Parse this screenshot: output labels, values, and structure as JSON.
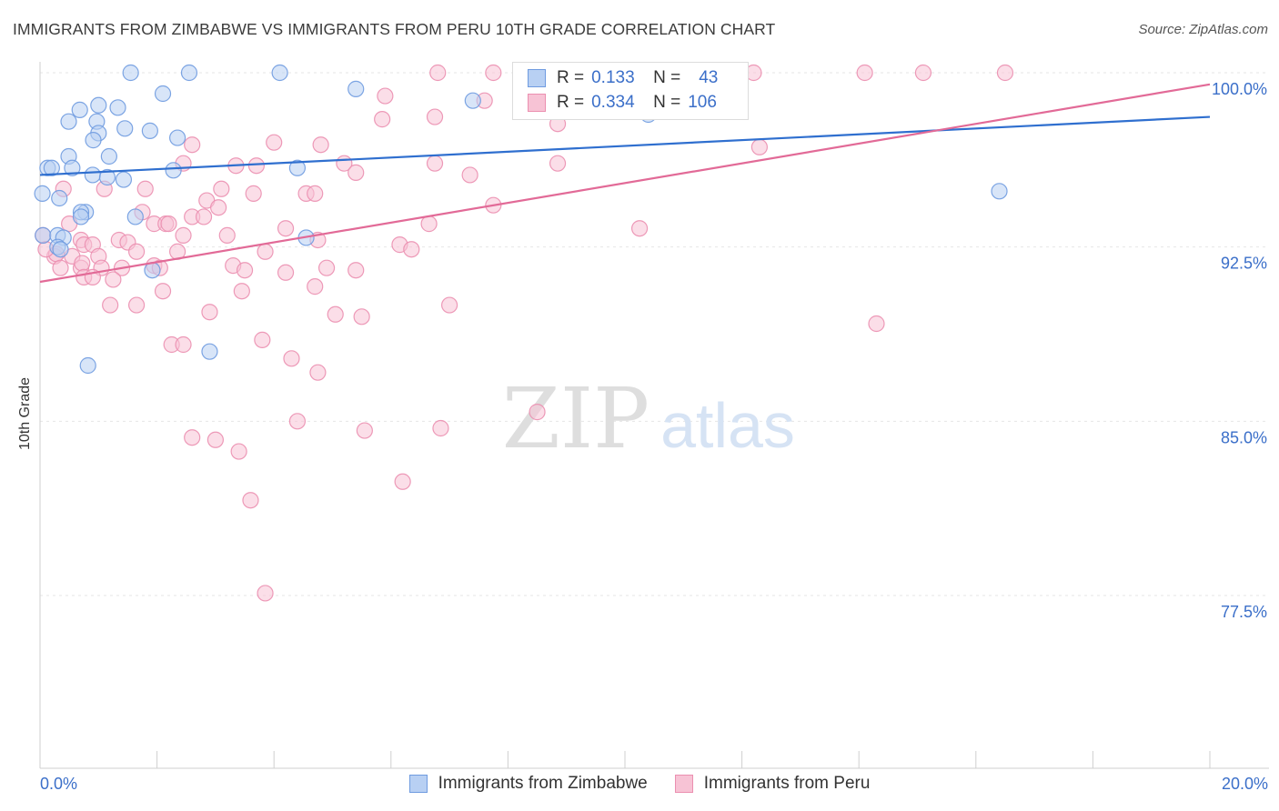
{
  "title": "IMMIGRANTS FROM ZIMBABWE VS IMMIGRANTS FROM PERU 10TH GRADE CORRELATION CHART",
  "source": "Source: ZipAtlas.com",
  "watermark": {
    "zip": "ZIP",
    "atlas": "atlas"
  },
  "colors": {
    "zimbabwe_fill": "#b8d0f3",
    "zimbabwe_stroke": "#6f9be0",
    "zimbabwe_line": "#2f6fcf",
    "peru_fill": "#f7c3d5",
    "peru_stroke": "#eb8fb0",
    "peru_line": "#e26a97",
    "tick_label": "#3b6fc9",
    "grid": "#e6e6e6"
  },
  "legend_stats": [
    {
      "r_label": "R =",
      "r_value": "0.133",
      "n_label": "N =",
      "n_value": "43",
      "series": "zimbabwe"
    },
    {
      "r_label": "R =",
      "r_value": "0.334",
      "n_label": "N =",
      "n_value": "106",
      "series": "peru"
    }
  ],
  "chart_data": {
    "type": "scatter",
    "title": "IMMIGRANTS FROM ZIMBABWE VS IMMIGRANTS FROM PERU 10TH GRADE CORRELATION CHART",
    "xlabel": "",
    "ylabel": "10th Grade",
    "xlim": [
      0,
      20
    ],
    "ylim": [
      70.5,
      101
    ],
    "x_tick_labels": [
      "0.0%",
      "20.0%"
    ],
    "y_ticks": [
      77.5,
      85.0,
      92.5,
      100.0
    ],
    "y_tick_labels": [
      "77.5%",
      "85.0%",
      "92.5%",
      "100.0%"
    ],
    "legend_position": "bottom",
    "series": [
      {
        "name": "Immigrants from Zimbabwe",
        "color": "#6f9be0",
        "trend": {
          "x": [
            0,
            20
          ],
          "y": [
            95.6,
            98.1
          ]
        },
        "points": [
          [
            1.55,
            100.0
          ],
          [
            2.55,
            100.0
          ],
          [
            4.1,
            100.0
          ],
          [
            5.4,
            99.3
          ],
          [
            7.4,
            98.8
          ],
          [
            2.1,
            99.1
          ],
          [
            1.0,
            98.6
          ],
          [
            0.68,
            98.4
          ],
          [
            1.33,
            98.5
          ],
          [
            0.97,
            97.9
          ],
          [
            0.49,
            97.9
          ],
          [
            1.45,
            97.6
          ],
          [
            1.88,
            97.5
          ],
          [
            1.0,
            97.4
          ],
          [
            0.91,
            97.1
          ],
          [
            2.35,
            97.2
          ],
          [
            0.49,
            96.4
          ],
          [
            1.18,
            96.4
          ],
          [
            4.4,
            95.9
          ],
          [
            0.13,
            95.9
          ],
          [
            0.2,
            95.9
          ],
          [
            0.55,
            95.9
          ],
          [
            2.28,
            95.8
          ],
          [
            0.9,
            95.6
          ],
          [
            1.15,
            95.5
          ],
          [
            1.43,
            95.4
          ],
          [
            0.04,
            94.8
          ],
          [
            0.33,
            94.6
          ],
          [
            0.78,
            94.0
          ],
          [
            0.7,
            94.0
          ],
          [
            0.7,
            93.8
          ],
          [
            1.63,
            93.8
          ],
          [
            0.05,
            93.0
          ],
          [
            0.3,
            93.0
          ],
          [
            0.4,
            92.9
          ],
          [
            0.3,
            92.5
          ],
          [
            0.35,
            92.4
          ],
          [
            4.55,
            92.9
          ],
          [
            1.92,
            91.5
          ],
          [
            2.9,
            88.0
          ],
          [
            0.82,
            87.4
          ],
          [
            16.4,
            94.9
          ],
          [
            10.4,
            98.2
          ]
        ]
      },
      {
        "name": "Immigrants from Peru",
        "color": "#eb8fb0",
        "trend": {
          "x": [
            0,
            20
          ],
          "y": [
            91.0,
            99.5
          ]
        },
        "points": [
          [
            6.8,
            100.0
          ],
          [
            7.75,
            100.0
          ],
          [
            9.4,
            100.0
          ],
          [
            10.2,
            100.0
          ],
          [
            10.5,
            100.0
          ],
          [
            12.2,
            100.0
          ],
          [
            14.1,
            100.0
          ],
          [
            15.1,
            100.0
          ],
          [
            16.5,
            100.0
          ],
          [
            8.25,
            99.2
          ],
          [
            5.9,
            99.0
          ],
          [
            7.6,
            98.8
          ],
          [
            5.85,
            98.0
          ],
          [
            6.75,
            98.1
          ],
          [
            8.85,
            97.8
          ],
          [
            2.6,
            96.9
          ],
          [
            4.0,
            97.0
          ],
          [
            4.8,
            96.9
          ],
          [
            12.3,
            96.8
          ],
          [
            2.45,
            96.1
          ],
          [
            3.35,
            96.0
          ],
          [
            3.7,
            96.0
          ],
          [
            5.2,
            96.1
          ],
          [
            6.75,
            96.1
          ],
          [
            8.85,
            96.1
          ],
          [
            5.4,
            95.7
          ],
          [
            7.35,
            95.6
          ],
          [
            0.4,
            95.0
          ],
          [
            1.1,
            95.0
          ],
          [
            1.8,
            95.0
          ],
          [
            3.1,
            95.0
          ],
          [
            3.65,
            94.8
          ],
          [
            4.55,
            94.8
          ],
          [
            4.7,
            94.8
          ],
          [
            2.85,
            94.5
          ],
          [
            7.75,
            94.3
          ],
          [
            3.05,
            94.2
          ],
          [
            1.75,
            94.0
          ],
          [
            2.6,
            93.8
          ],
          [
            2.8,
            93.8
          ],
          [
            1.95,
            93.5
          ],
          [
            2.15,
            93.5
          ],
          [
            2.2,
            93.5
          ],
          [
            4.2,
            93.3
          ],
          [
            6.65,
            93.5
          ],
          [
            10.25,
            93.3
          ],
          [
            0.5,
            93.5
          ],
          [
            2.45,
            93.0
          ],
          [
            3.2,
            93.0
          ],
          [
            1.35,
            92.8
          ],
          [
            1.5,
            92.7
          ],
          [
            0.7,
            92.8
          ],
          [
            0.75,
            92.6
          ],
          [
            0.9,
            92.6
          ],
          [
            4.75,
            92.8
          ],
          [
            1.65,
            92.3
          ],
          [
            2.35,
            92.3
          ],
          [
            3.85,
            92.3
          ],
          [
            6.15,
            92.6
          ],
          [
            6.35,
            92.4
          ],
          [
            1.0,
            92.1
          ],
          [
            0.25,
            92.1
          ],
          [
            0.28,
            92.2
          ],
          [
            0.55,
            92.1
          ],
          [
            0.35,
            91.6
          ],
          [
            0.7,
            91.6
          ],
          [
            0.72,
            91.8
          ],
          [
            1.05,
            91.6
          ],
          [
            3.3,
            91.7
          ],
          [
            1.95,
            91.7
          ],
          [
            2.05,
            91.6
          ],
          [
            1.4,
            91.6
          ],
          [
            3.5,
            91.5
          ],
          [
            4.2,
            91.4
          ],
          [
            4.9,
            91.6
          ],
          [
            5.4,
            91.5
          ],
          [
            0.75,
            91.2
          ],
          [
            0.9,
            91.2
          ],
          [
            1.25,
            91.1
          ],
          [
            3.45,
            90.6
          ],
          [
            2.1,
            90.6
          ],
          [
            4.7,
            90.8
          ],
          [
            1.2,
            90.0
          ],
          [
            1.65,
            90.0
          ],
          [
            7.0,
            90.0
          ],
          [
            2.9,
            89.7
          ],
          [
            5.05,
            89.6
          ],
          [
            5.5,
            89.5
          ],
          [
            14.3,
            89.2
          ],
          [
            2.25,
            88.3
          ],
          [
            2.45,
            88.3
          ],
          [
            3.8,
            88.5
          ],
          [
            4.3,
            87.7
          ],
          [
            4.75,
            87.1
          ],
          [
            8.5,
            85.4
          ],
          [
            4.4,
            85.0
          ],
          [
            5.55,
            84.6
          ],
          [
            6.85,
            84.7
          ],
          [
            2.6,
            84.3
          ],
          [
            3.0,
            84.2
          ],
          [
            3.4,
            83.7
          ],
          [
            6.2,
            82.4
          ],
          [
            3.6,
            81.6
          ],
          [
            3.85,
            77.6
          ],
          [
            0.05,
            93.0
          ],
          [
            0.1,
            92.4
          ]
        ]
      }
    ]
  },
  "bottom_legend": [
    {
      "label": "Immigrants from Zimbabwe",
      "series": "zimbabwe"
    },
    {
      "label": "Immigrants from Peru",
      "series": "peru"
    }
  ]
}
